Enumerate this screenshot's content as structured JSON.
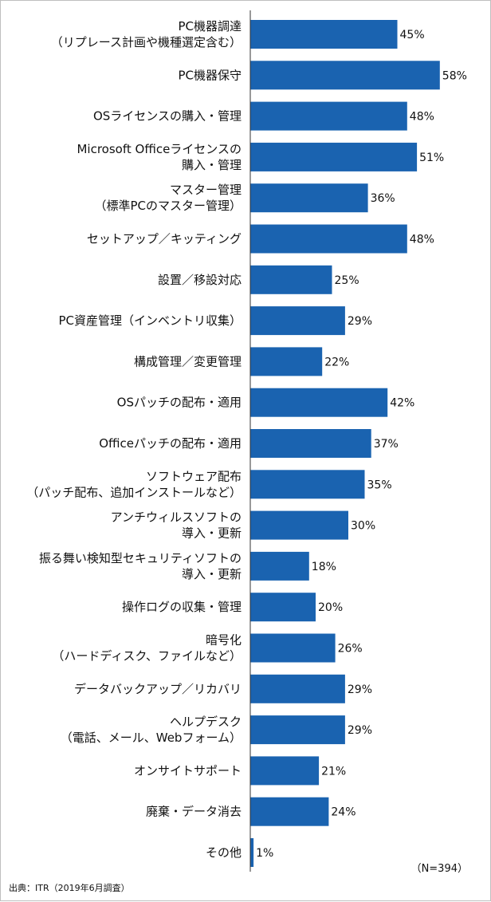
{
  "chart_data": {
    "type": "bar",
    "orientation": "horizontal",
    "categories": [
      [
        "PC機器調達",
        "（リプレース計画や機種選定含む）"
      ],
      [
        "PC機器保守"
      ],
      [
        "OSライセンスの購入・管理"
      ],
      [
        "Microsoft Officeライセンスの",
        "購入・管理"
      ],
      [
        "マスター管理",
        "（標準PCのマスター管理）"
      ],
      [
        "セットアップ／キッティング"
      ],
      [
        "設置／移設対応"
      ],
      [
        "PC資産管理（インベントリ収集）"
      ],
      [
        "構成管理／変更管理"
      ],
      [
        "OSパッチの配布・適用"
      ],
      [
        "Officeパッチの配布・適用"
      ],
      [
        "ソフトウェア配布",
        "（パッチ配布、追加インストールなど）"
      ],
      [
        "アンチウィルスソフトの",
        "導入・更新"
      ],
      [
        "振る舞い検知型セキュリティソフトの",
        "導入・更新"
      ],
      [
        "操作ログの収集・管理"
      ],
      [
        "暗号化",
        "（ハードディスク、ファイルなど）"
      ],
      [
        "データバックアップ／リカバリ"
      ],
      [
        "ヘルプデスク",
        "（電話、メール、Webフォーム）"
      ],
      [
        "オンサイトサポート"
      ],
      [
        "廃棄・データ消去"
      ],
      [
        "その他"
      ]
    ],
    "values": [
      45,
      58,
      48,
      51,
      36,
      48,
      25,
      29,
      22,
      42,
      37,
      35,
      30,
      18,
      20,
      26,
      29,
      29,
      21,
      24,
      1
    ],
    "value_labels": [
      "45%",
      "58%",
      "48%",
      "51%",
      "36%",
      "48%",
      "25%",
      "29%",
      "22%",
      "42%",
      "37%",
      "35%",
      "30%",
      "18%",
      "20%",
      "26%",
      "29%",
      "29%",
      "21%",
      "24%",
      "1%"
    ],
    "unit": "%",
    "xlim": [
      0,
      60
    ],
    "grid": false,
    "bar_color": "#1a63b0",
    "axis_color": "#333333"
  },
  "sample_size": "（N=394）",
  "source": "出典：ITR（2019年6月調査）"
}
